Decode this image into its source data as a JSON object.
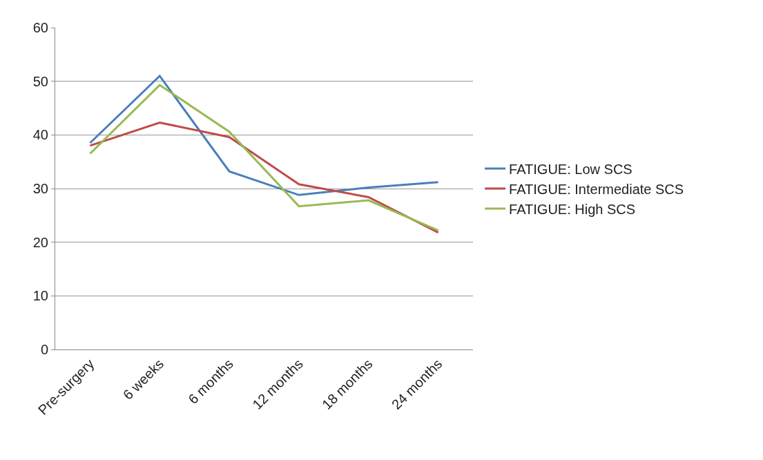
{
  "chart_data": {
    "type": "line",
    "categories": [
      "Pre-surgery",
      "6 weeks",
      "6 months",
      "12 months",
      "18 months",
      "24 months"
    ],
    "series": [
      {
        "name": "FATIGUE: Low SCS",
        "color": "#4a7ebb",
        "values": [
          38.5,
          51,
          33.2,
          28.8,
          30.2,
          31.2
        ]
      },
      {
        "name": "FATIGUE: Intermediate SCS",
        "color": "#be4b48",
        "values": [
          38,
          42.3,
          39.6,
          30.8,
          28.4,
          21.8
        ]
      },
      {
        "name": "FATIGUE: High SCS",
        "color": "#98b954",
        "values": [
          36.5,
          49.3,
          40.6,
          26.7,
          27.8,
          22.2
        ]
      }
    ],
    "ylim": [
      0,
      60
    ],
    "yticks": [
      0,
      10,
      20,
      30,
      40,
      50,
      60
    ],
    "grid": "y",
    "legend": "right",
    "marker": "none",
    "line_style": "solid"
  }
}
